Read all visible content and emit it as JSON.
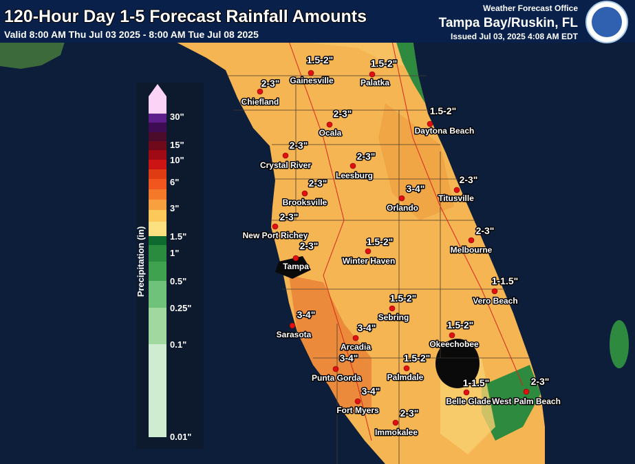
{
  "header": {
    "title": "120-Hour Day 1-5 Forecast Rainfall Amounts",
    "valid": "Valid 8:00 AM Thu Jul 03 2025 - 8:00 AM Tue Jul 08 2025",
    "office_label": "Weather Forecast Office",
    "office": "Tampa Bay/Ruskin, FL",
    "issued": "Issued Jul 03, 2025 4:08 AM EDT"
  },
  "legend": {
    "title": "Precipitation (in)",
    "labels": [
      "30\"",
      "15\"",
      "10\"",
      "6\"",
      "3\"",
      "1.5\"",
      "1\"",
      "0.5\"",
      "0.25\"",
      "0.1\"",
      "0.01\""
    ]
  },
  "cities": [
    {
      "name": "Gainesville",
      "amount": "1.5-2\""
    },
    {
      "name": "Palatka",
      "amount": "1.5-2\""
    },
    {
      "name": "Chiefland",
      "amount": "2-3\""
    },
    {
      "name": "Ocala",
      "amount": "2-3\""
    },
    {
      "name": "Daytona Beach",
      "amount": "1.5-2\""
    },
    {
      "name": "Crystal River",
      "amount": "2-3\""
    },
    {
      "name": "Leesburg",
      "amount": "2-3\""
    },
    {
      "name": "Titusville",
      "amount": "2-3\""
    },
    {
      "name": "Brooksville",
      "amount": "2-3\""
    },
    {
      "name": "Orlando",
      "amount": "3-4\""
    },
    {
      "name": "New Port Richey",
      "amount": "2-3\""
    },
    {
      "name": "Melbourne",
      "amount": "2-3\""
    },
    {
      "name": "Tampa",
      "amount": "2-3\""
    },
    {
      "name": "Winter Haven",
      "amount": "1.5-2\""
    },
    {
      "name": "Vero Beach",
      "amount": "1-1.5\""
    },
    {
      "name": "Sebring",
      "amount": "1.5-2\""
    },
    {
      "name": "Sarasota",
      "amount": "3-4\""
    },
    {
      "name": "Arcadia",
      "amount": "3-4\""
    },
    {
      "name": "Okeechobee",
      "amount": "1.5-2\""
    },
    {
      "name": "Punta Gorda",
      "amount": "3-4\""
    },
    {
      "name": "Palmdale",
      "amount": "1.5-2\""
    },
    {
      "name": "Belle Glade",
      "amount": "1-1.5\""
    },
    {
      "name": "West Palm Beach",
      "amount": "2-3\""
    },
    {
      "name": "Fort Myers",
      "amount": "3-4\""
    },
    {
      "name": "Immokalee",
      "amount": "2-3\""
    }
  ]
}
